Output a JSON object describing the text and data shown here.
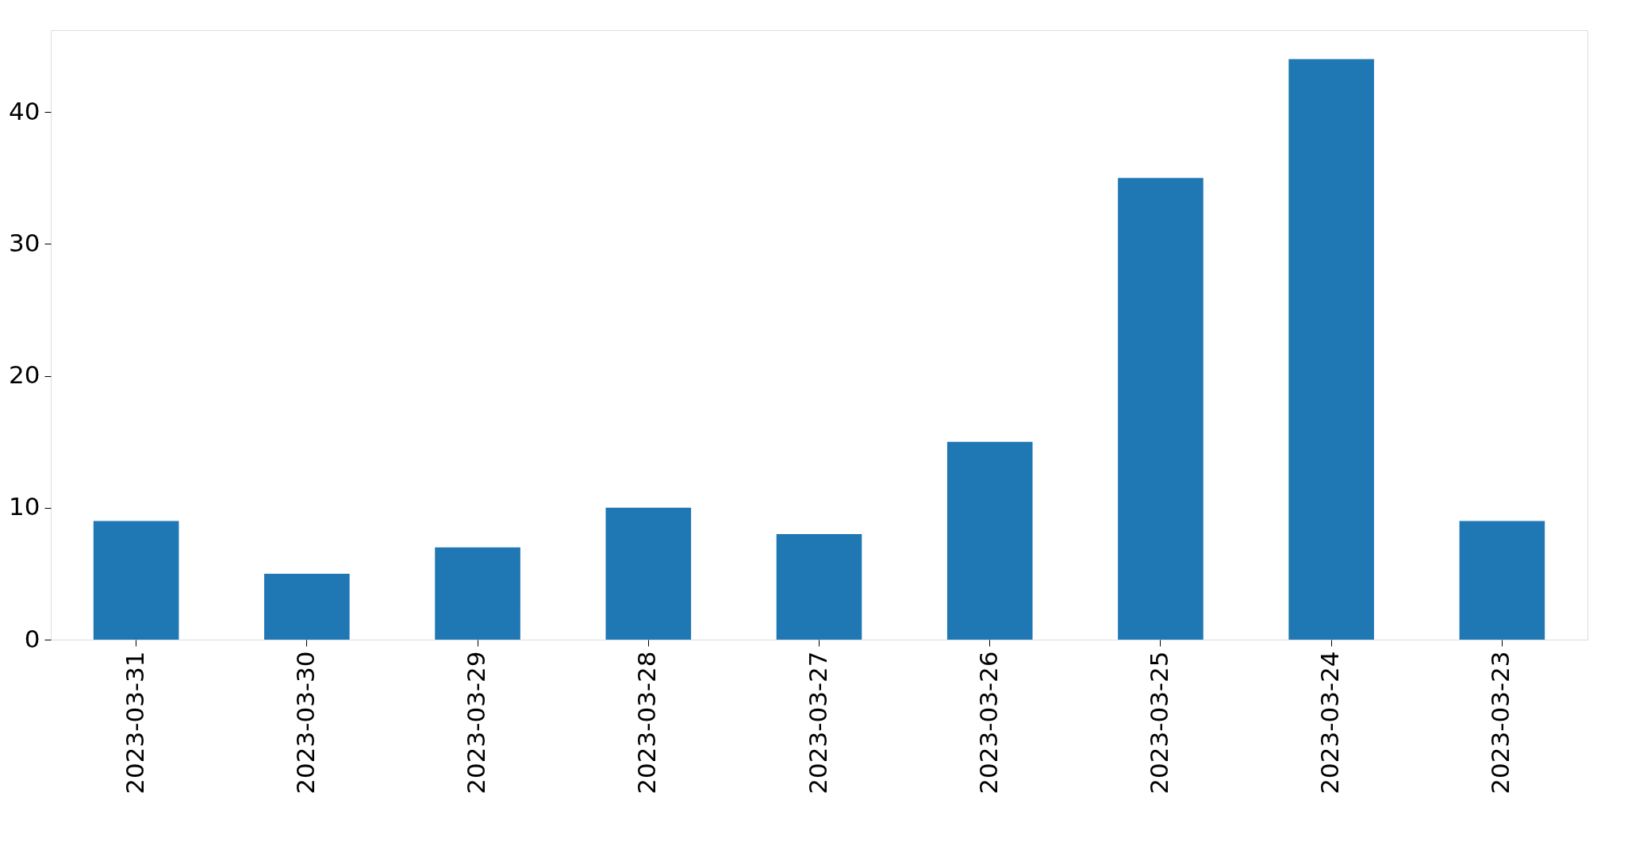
{
  "chart_data": {
    "type": "bar",
    "categories": [
      "2023-03-31",
      "2023-03-30",
      "2023-03-29",
      "2023-03-28",
      "2023-03-27",
      "2023-03-26",
      "2023-03-25",
      "2023-03-24",
      "2023-03-23"
    ],
    "values": [
      9,
      5,
      7,
      10,
      8,
      15,
      35,
      44,
      9
    ],
    "color": "#1f77b4",
    "ylim": [
      0,
      46.2
    ],
    "yticks": [
      0,
      10,
      20,
      30,
      40
    ],
    "grid": false
  }
}
